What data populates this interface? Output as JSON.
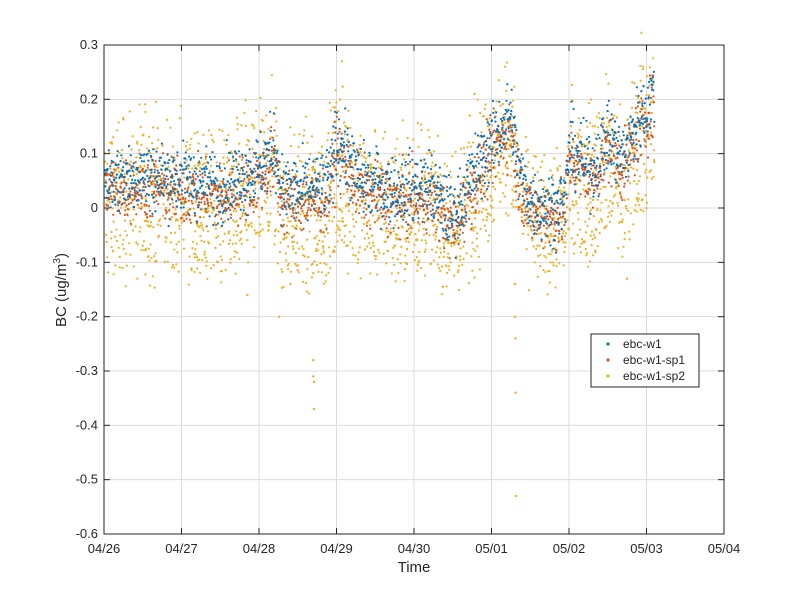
{
  "chart_data": {
    "type": "scatter",
    "xlabel": "Time",
    "ylabel_main": "BC (ug/m",
    "ylabel_sup": "3",
    "ylabel_tail": ")",
    "x_ticks": [
      "04/26",
      "04/27",
      "04/28",
      "04/29",
      "04/30",
      "05/01",
      "05/02",
      "05/03",
      "05/04"
    ],
    "y_ticks": [
      "-0.6",
      "-0.5",
      "-0.4",
      "-0.3",
      "-0.2",
      "-0.1",
      "0",
      "0.1",
      "0.2",
      "0.3"
    ],
    "xlim": [
      0,
      8
    ],
    "xlim_dates": [
      "04/26",
      "05/04"
    ],
    "ylim": [
      -0.6,
      0.3
    ],
    "grid": true,
    "legend_position": "right",
    "series": [
      {
        "name": "ebc-w1",
        "color": "#0072BD",
        "spread": 0.032,
        "offset": 0.012,
        "x": [
          0,
          0.5,
          1.0,
          1.5,
          2.0,
          2.2,
          2.3,
          2.6,
          2.9,
          3.0,
          3.3,
          3.8,
          4.2,
          4.5,
          4.8,
          5.1,
          5.25,
          5.35,
          5.5,
          5.8,
          5.95,
          6.0,
          6.3,
          6.5,
          6.7,
          6.9,
          7.1
        ],
        "y": [
          0.04,
          0.05,
          0.04,
          0.03,
          0.06,
          0.1,
          0.02,
          0.02,
          0.03,
          0.12,
          0.04,
          0.02,
          0.03,
          -0.03,
          0.06,
          0.13,
          0.16,
          0.06,
          0.0,
          -0.01,
          0.0,
          0.1,
          0.06,
          0.12,
          0.08,
          0.15,
          0.2
        ]
      },
      {
        "name": "ebc-w1-sp1",
        "color": "#D95319",
        "spread": 0.03,
        "offset": 0.0,
        "x": [
          0,
          0.5,
          1.0,
          1.5,
          2.0,
          2.2,
          2.3,
          2.6,
          2.9,
          3.0,
          3.3,
          3.8,
          4.2,
          4.5,
          4.8,
          5.1,
          5.25,
          5.35,
          5.5,
          5.8,
          5.95,
          6.0,
          6.3,
          6.5,
          6.7,
          6.9,
          7.1
        ],
        "y": [
          0.03,
          0.04,
          0.03,
          0.02,
          0.05,
          0.09,
          0.01,
          0.01,
          0.02,
          0.11,
          0.03,
          0.01,
          0.02,
          -0.04,
          0.05,
          0.12,
          0.15,
          0.05,
          -0.01,
          -0.02,
          -0.01,
          0.09,
          0.05,
          0.11,
          0.07,
          0.14,
          0.19
        ]
      },
      {
        "name": "ebc-w1-sp2",
        "color": "#EDB120",
        "spread": 0.06,
        "offset": 0.0,
        "x": [
          0,
          0.5,
          1.0,
          1.5,
          2.0,
          2.2,
          2.3,
          2.6,
          2.9,
          3.0,
          3.3,
          3.8,
          4.2,
          4.5,
          4.8,
          5.1,
          5.25,
          5.35,
          5.5,
          5.8,
          5.95,
          6.0,
          6.3,
          6.5,
          6.7,
          6.9,
          7.1
        ],
        "y": [
          0.04,
          0.05,
          0.04,
          0.03,
          0.06,
          0.1,
          0.02,
          0.02,
          0.03,
          0.12,
          0.04,
          0.02,
          0.03,
          -0.03,
          0.06,
          0.13,
          0.16,
          0.06,
          0.0,
          -0.01,
          0.0,
          0.1,
          0.06,
          0.12,
          0.08,
          0.15,
          0.2
        ]
      }
    ],
    "low_band": {
      "x": [
        0,
        0.5,
        1.0,
        1.5,
        2.0,
        2.2,
        2.3,
        2.6,
        2.9,
        3.0,
        3.3,
        3.8,
        4.2,
        4.5,
        4.8,
        5.1,
        5.25,
        5.35,
        5.5,
        5.8,
        5.95,
        6.0,
        6.3,
        6.5,
        6.7,
        6.9,
        7.1
      ],
      "y": [
        -0.08,
        -0.07,
        -0.08,
        -0.09,
        -0.04,
        -0.02,
        -0.1,
        -0.1,
        -0.08,
        -0.03,
        -0.07,
        -0.08,
        -0.06,
        -0.11,
        -0.06,
        0.02,
        0.06,
        -0.04,
        -0.08,
        -0.09,
        -0.08,
        -0.03,
        -0.05,
        -0.01,
        -0.04,
        0.01,
        0.06
      ]
    },
    "outliers": [
      {
        "x": 2.26,
        "y": -0.2
      },
      {
        "x": 2.7,
        "y": -0.28
      },
      {
        "x": 2.7,
        "y": -0.31
      },
      {
        "x": 2.71,
        "y": -0.32
      },
      {
        "x": 2.71,
        "y": -0.37
      },
      {
        "x": 5.3,
        "y": -0.14
      },
      {
        "x": 5.3,
        "y": -0.2
      },
      {
        "x": 5.31,
        "y": -0.24
      },
      {
        "x": 5.31,
        "y": -0.34
      },
      {
        "x": 5.32,
        "y": -0.53
      },
      {
        "x": 1.85,
        "y": -0.16
      },
      {
        "x": 4.72,
        "y": 0.17
      },
      {
        "x": 4.78,
        "y": 0.21
      },
      {
        "x": 2.7,
        "y": -0.12
      },
      {
        "x": 6.75,
        "y": -0.13
      }
    ]
  }
}
